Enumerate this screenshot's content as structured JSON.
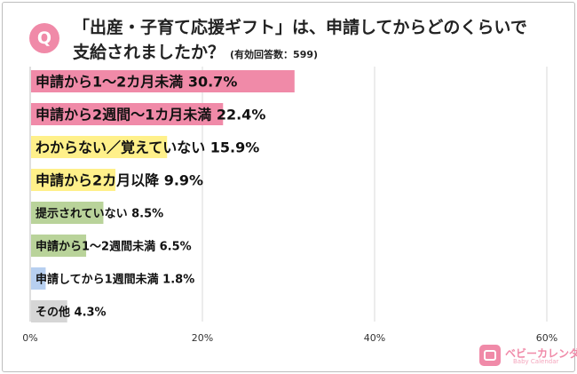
{
  "badge": "Q",
  "title_line1": "「出産・子育て応援ギフト」は、申請してからどのくらいで",
  "title_line2": "支給されましたか？",
  "sample_note": "(有効回答数：599)",
  "logo": {
    "name": "ベビーカレンダー",
    "sub": "Baby Calendar"
  },
  "colors": {
    "pink": "#f08aa8",
    "yellow": "#fff08a",
    "green": "#b9d39a",
    "blue": "#b7cff0",
    "gray": "#d6d6d6",
    "grid": "#d9d9d9",
    "axis": "#bfbfbf"
  },
  "chart_data": {
    "type": "bar",
    "orientation": "horizontal",
    "xlim": [
      0,
      60
    ],
    "xticks": [
      0,
      20,
      40,
      60
    ],
    "tick_labels": [
      "0%",
      "20%",
      "40%",
      "60%"
    ],
    "grid": true,
    "categories": [
      "申請から1～2カ月未満",
      "申請から2週間～1カ月未満",
      "わからない／覚えていない",
      "申請から2カ月以降",
      "提示されていない",
      "申請から1～2週間未満",
      "申請してから1週間未満",
      "その他"
    ],
    "values": [
      30.7,
      22.4,
      15.9,
      9.9,
      8.5,
      6.5,
      1.8,
      4.3
    ],
    "value_labels": [
      "30.7%",
      "22.4%",
      "15.9%",
      "9.9%",
      "8.5%",
      "6.5%",
      "1.8%",
      "4.3%"
    ],
    "bar_colors": [
      "pink",
      "pink",
      "yellow",
      "yellow",
      "green",
      "green",
      "blue",
      "gray"
    ]
  }
}
